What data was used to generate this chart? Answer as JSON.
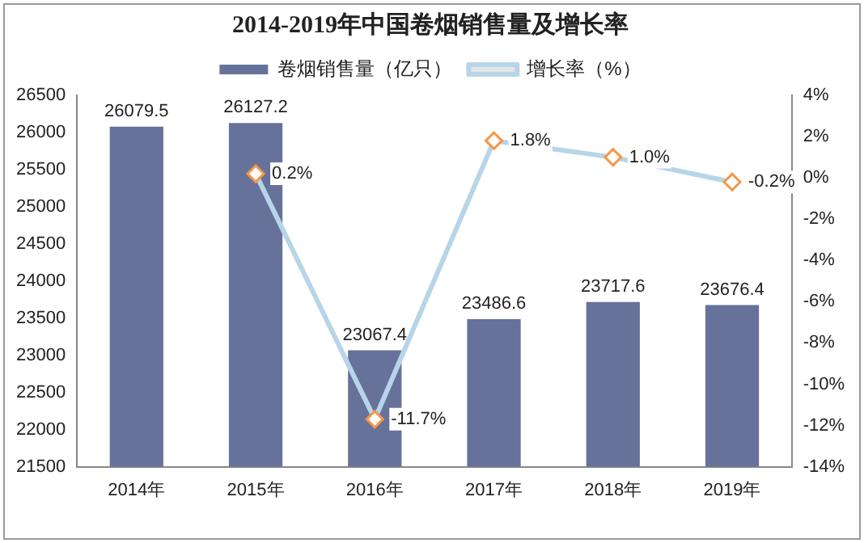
{
  "chart_data": {
    "type": "bar",
    "title": "2014-2019年中国卷烟销售量及增长率",
    "categories": [
      "2014年",
      "2015年",
      "2016年",
      "2017年",
      "2018年",
      "2019年"
    ],
    "series": [
      {
        "name": "卷烟销售量（亿只）",
        "color": "#67729b",
        "values": [
          26079.5,
          26127.2,
          23067.4,
          23486.6,
          23717.6,
          23676.4
        ],
        "value_labels": [
          "26079.5",
          "26127.2",
          "23067.4",
          "23486.6",
          "23717.6",
          "23676.4"
        ]
      },
      {
        "name": "增长率（%）",
        "type": "line",
        "axis": "y2",
        "color": "#b7d5e8",
        "marker": "diamond",
        "values": [
          null,
          0.2,
          -11.7,
          1.8,
          1.0,
          -0.2
        ],
        "value_labels": [
          null,
          "0.2%",
          "-11.7%",
          "1.8%",
          "1.0%",
          "-0.2%"
        ]
      }
    ],
    "ylim": [
      21500,
      26500
    ],
    "yticks": [
      21500,
      22000,
      22500,
      23000,
      23500,
      24000,
      24500,
      25000,
      25500,
      26000,
      26500
    ],
    "y2lim": [
      -14,
      4
    ],
    "y2ticks": [
      {
        "value": -14,
        "label": "-14%"
      },
      {
        "value": -12,
        "label": "-12%"
      },
      {
        "value": -10,
        "label": "-10%"
      },
      {
        "value": -8,
        "label": "-8%"
      },
      {
        "value": -6,
        "label": "-6%"
      },
      {
        "value": -4,
        "label": "-4%"
      },
      {
        "value": -2,
        "label": "-2%"
      },
      {
        "value": 0,
        "label": "0%"
      },
      {
        "value": 2,
        "label": "2%"
      },
      {
        "value": 4,
        "label": "4%"
      }
    ],
    "grid": false,
    "legend": "top"
  }
}
